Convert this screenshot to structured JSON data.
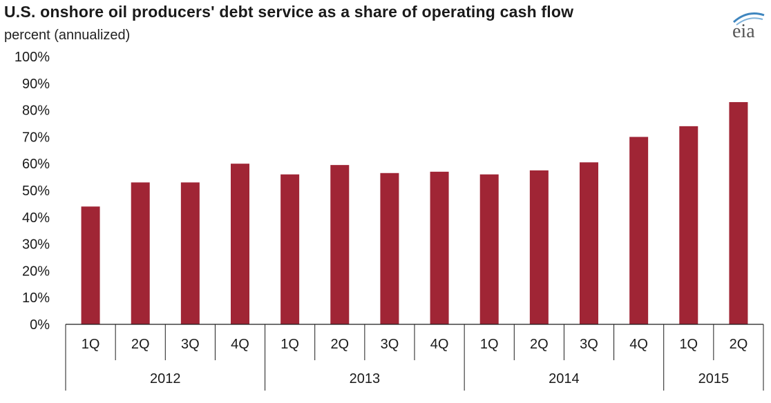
{
  "header": {
    "title": "U.S. onshore oil producers' debt service as a share of operating cash flow",
    "subtitle": "percent (annualized)",
    "logo_text": "eia"
  },
  "colors": {
    "bar": "#a02535",
    "axis": "#1a1a1a",
    "logo_arc": "#3f86bf",
    "logo_text": "#555555"
  },
  "chart_data": {
    "type": "bar",
    "title": "U.S. onshore oil producers' debt service as a share of operating cash flow",
    "subtitle": "percent (annualized)",
    "xlabel": "",
    "ylabel": "",
    "ylim": [
      0,
      100
    ],
    "y_ticks": [
      "0%",
      "10%",
      "20%",
      "30%",
      "40%",
      "50%",
      "60%",
      "70%",
      "80%",
      "90%",
      "100%"
    ],
    "grid": false,
    "categories": [
      "1Q",
      "2Q",
      "3Q",
      "4Q",
      "1Q",
      "2Q",
      "3Q",
      "4Q",
      "1Q",
      "2Q",
      "3Q",
      "4Q",
      "1Q",
      "2Q"
    ],
    "groups": [
      {
        "label": "2012",
        "count": 4
      },
      {
        "label": "2013",
        "count": 4
      },
      {
        "label": "2014",
        "count": 4
      },
      {
        "label": "2015",
        "count": 2
      }
    ],
    "values": [
      44,
      53,
      53,
      60,
      56,
      59.5,
      56.5,
      57,
      56,
      57.5,
      60.5,
      70,
      74,
      83
    ]
  }
}
